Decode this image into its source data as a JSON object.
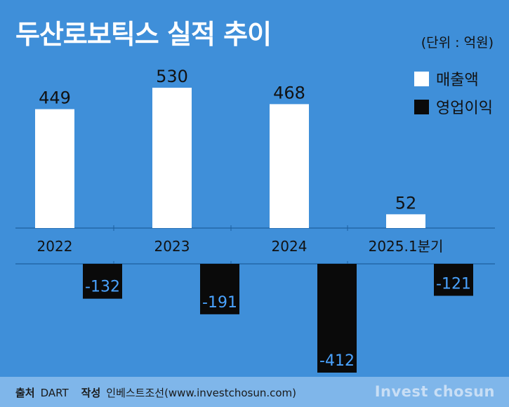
{
  "header": {
    "title": "두산로보틱스 실적 추이",
    "unit": "(단위 : 억원)"
  },
  "colors": {
    "background": "#3f8fd9",
    "revenue": "#ffffff",
    "operating_profit": "#0a0a0a",
    "footer": "#7fb6ea"
  },
  "legend": [
    {
      "label": "매출액",
      "color": "#ffffff"
    },
    {
      "label": "영업이익",
      "color": "#0a0a0a"
    }
  ],
  "footer": {
    "source_label": "출처",
    "source_value": "DART",
    "author_label": "작성",
    "author_value": "인베스트조선(www.investchosun.com)",
    "brand": "Invest chosun"
  },
  "chart_data": {
    "type": "bar",
    "title": "두산로보틱스 실적 추이",
    "unit": "(단위 : 억원)",
    "categories": [
      "2022",
      "2023",
      "2024",
      "2025.1분기"
    ],
    "series": [
      {
        "name": "매출액",
        "values": [
          449,
          530,
          468,
          52
        ]
      },
      {
        "name": "영업이익",
        "values": [
          -132,
          -191,
          -412,
          -121
        ]
      }
    ],
    "legend_position": "top-right",
    "grid": false
  }
}
